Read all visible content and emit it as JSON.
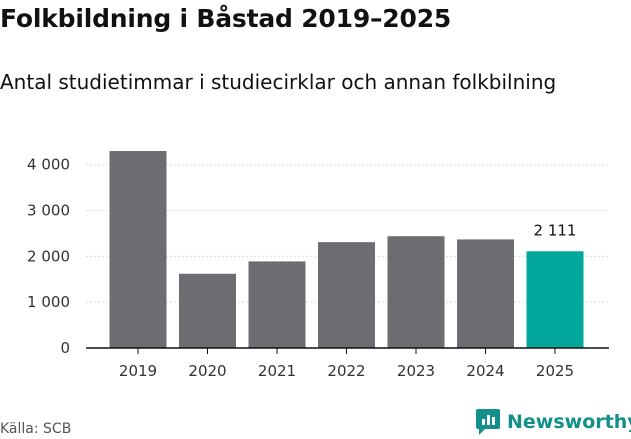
{
  "title": "Folkbildning i Båstad 2019–2025",
  "subtitle": "Antal studietimmar i studiecirklar och annan folkbilning",
  "source": "Källa: SCB",
  "brand": {
    "name": "Newsworthy",
    "color": "#13908c",
    "icon": "newsworthy-logo-icon"
  },
  "colors": {
    "bar": "#6d6c71",
    "highlight": "#00a79a",
    "axis": "#111111",
    "grid": "#dddddd"
  },
  "chart_data": {
    "type": "bar",
    "title": "Folkbildning i Båstad 2019–2025",
    "subtitle": "Antal studietimmar i studiecirklar och annan folkbilning",
    "xlabel": "",
    "ylabel": "",
    "categories": [
      "2019",
      "2020",
      "2021",
      "2022",
      "2023",
      "2024",
      "2025"
    ],
    "values": [
      4300,
      1620,
      1890,
      2310,
      2440,
      2370,
      2111
    ],
    "highlight_index": 6,
    "data_labels": [
      null,
      null,
      null,
      null,
      null,
      null,
      "2 111"
    ],
    "ylim": [
      0,
      4300
    ],
    "yticks": [
      0,
      1000,
      2000,
      3000,
      4000
    ],
    "ytick_labels": [
      "0",
      "1 000",
      "2 000",
      "3 000",
      "4 000"
    ],
    "grid": true
  }
}
